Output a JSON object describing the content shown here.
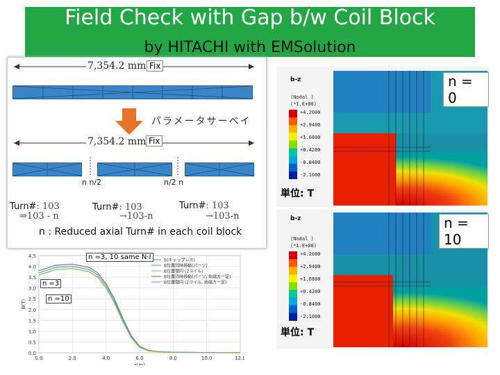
{
  "header": {
    "title": "Field Check with Gap b/w  Coil Block",
    "subtitle": "by HITACHI with EMSolution"
  },
  "diagram": {
    "dimension_top": "7,354.2 mm",
    "fix_top": "Fix",
    "parameter_survey": "パラメータサーベイ",
    "dimension_bottom": "7,354.2 mm",
    "fix_bottom": "Fix",
    "gap_left": "n  n/2",
    "gap_right": "n/2  n",
    "turn_label": "Turn#",
    "turn_value": ": 103",
    "turn_reduced_left": "⇒103 - n",
    "turn_reduced_mid": "→103-n",
    "turn_reduced_right": "→103-n",
    "caption": "n : Reduced axial Turn# in each coil block"
  },
  "graph": {
    "callout_same": "n =3, 10 same N·I",
    "callout_n3": "n =3",
    "callout_n10": "n =10",
    "ylabel": "B(T)",
    "xlabel": "z(m)",
    "legend": [
      "B(キャップレス)",
      "B位置同時移動(パーツ)",
      "B位置間円 (2コイル)",
      "B位置同時移動(パーツ, 始端方一定)",
      "B位置間円 (2コイル, 始端方一定)"
    ]
  },
  "chart_data": {
    "type": "line",
    "xlabel": "z(m)",
    "ylabel": "B(T)",
    "x_ticks": [
      "0.0",
      "2.0",
      "4.0",
      "6.0",
      "8.0",
      "10.0",
      "12.0"
    ],
    "y_ticks": [
      "0.0",
      "0.5",
      "1.0",
      "1.5",
      "2.0",
      "2.5",
      "3.0",
      "3.5",
      "4.0",
      "4.5"
    ],
    "xlim": [
      0,
      12
    ],
    "ylim": [
      0,
      4.5
    ],
    "series": [
      {
        "x": [
          0,
          1,
          2,
          3,
          3.5,
          4,
          4.5,
          5,
          5.5,
          6,
          6.5,
          7,
          8,
          10,
          12
        ],
        "y": [
          3.8,
          4.05,
          4.1,
          3.95,
          3.7,
          3.2,
          2.5,
          1.6,
          0.8,
          0.3,
          0.12,
          0.06,
          0.03,
          0.01,
          0.0
        ]
      },
      {
        "x": [
          0,
          1,
          2,
          3,
          3.5,
          4,
          4.5,
          5,
          5.5,
          6,
          6.5,
          7,
          8,
          10,
          12
        ],
        "y": [
          3.7,
          3.95,
          4.0,
          3.85,
          3.6,
          3.1,
          2.4,
          1.5,
          0.75,
          0.28,
          0.1,
          0.05,
          0.03,
          0.01,
          0.0
        ]
      },
      {
        "x": [
          0,
          1,
          2,
          3,
          3.5,
          4,
          4.5,
          5,
          5.5,
          6,
          6.5,
          7,
          8,
          10,
          12
        ],
        "y": [
          3.6,
          3.85,
          3.9,
          3.75,
          3.5,
          3.0,
          2.3,
          1.45,
          0.7,
          0.25,
          0.1,
          0.05,
          0.02,
          0.01,
          0.0
        ]
      }
    ]
  },
  "sim": {
    "top": {
      "title": "b-z",
      "nodal": "(Nodal   )",
      "scale": "(*1.E+00)",
      "n_label": "n = 0",
      "unit": "単位: T"
    },
    "bottom": {
      "title": "b-z",
      "nodal": "(Nodal   )",
      "scale": "(*1.E+00)",
      "n_label": "n = 10",
      "unit": "単位: T"
    },
    "scale_values": [
      "+4.2000",
      "+2.9400",
      "+1.6800",
      "+0.4200",
      "-0.8400",
      "-2.1000"
    ],
    "colors": [
      "#d60000",
      "#ff5a00",
      "#ffb000",
      "#f5f000",
      "#80e000",
      "#00c8a0",
      "#00a8e0",
      "#0060d0",
      "#0020a0"
    ]
  }
}
